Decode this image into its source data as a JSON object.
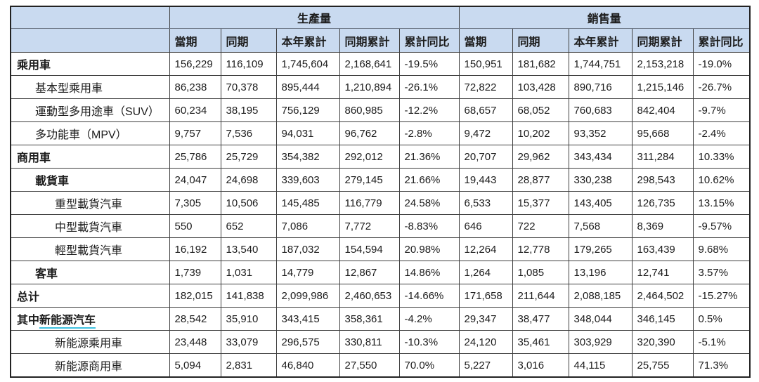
{
  "table": {
    "groups": [
      {
        "label": "生產量",
        "columns": [
          "當期",
          "同期",
          "本年累計",
          "同期累計",
          "累計同比"
        ]
      },
      {
        "label": "銷售量",
        "columns": [
          "當期",
          "同期",
          "本年累計",
          "同期累計",
          "累計同比"
        ]
      }
    ],
    "rows": [
      {
        "label": "乘用車",
        "indent": 0,
        "bold": true,
        "values": [
          "156,229",
          "116,109",
          "1,745,604",
          "2,168,641",
          "-19.5%",
          "150,951",
          "181,682",
          "1,744,751",
          "2,153,218",
          "-19.0%"
        ]
      },
      {
        "label": "基本型乘用車",
        "indent": 1,
        "bold": false,
        "values": [
          "86,238",
          "70,378",
          "895,444",
          "1,210,894",
          "-26.1%",
          "72,822",
          "103,428",
          "890,716",
          "1,215,146",
          "-26.7%"
        ]
      },
      {
        "label": "運動型多用途車（SUV）",
        "indent": 1,
        "bold": false,
        "values": [
          "60,234",
          "38,195",
          "756,129",
          "860,985",
          "-12.2%",
          "68,657",
          "68,052",
          "760,683",
          "842,404",
          "-9.7%"
        ]
      },
      {
        "label": "多功能車（MPV）",
        "indent": 1,
        "bold": false,
        "values": [
          "9,757",
          "7,536",
          "94,031",
          "96,762",
          "-2.8%",
          "9,472",
          "10,202",
          "93,352",
          "95,668",
          "-2.4%"
        ]
      },
      {
        "label": "商用車",
        "indent": 0,
        "bold": true,
        "values": [
          "25,786",
          "25,729",
          "354,382",
          "292,012",
          "21.36%",
          "20,707",
          "29,962",
          "343,434",
          "311,284",
          "10.33%"
        ]
      },
      {
        "label": "載貨車",
        "indent": 1,
        "bold": true,
        "values": [
          "24,047",
          "24,698",
          "339,603",
          "279,145",
          "21.66%",
          "19,443",
          "28,877",
          "330,238",
          "298,543",
          "10.62%"
        ]
      },
      {
        "label": "重型載貨汽車",
        "indent": 2,
        "bold": false,
        "values": [
          "7,305",
          "10,506",
          "145,485",
          "116,779",
          "24.58%",
          "6,533",
          "15,377",
          "143,405",
          "126,735",
          "13.15%"
        ]
      },
      {
        "label": "中型載貨汽車",
        "indent": 2,
        "bold": false,
        "values": [
          "550",
          "652",
          "7,086",
          "7,772",
          "-8.83%",
          "646",
          "722",
          "7,568",
          "8,369",
          "-9.57%"
        ]
      },
      {
        "label": "輕型載貨汽車",
        "indent": 2,
        "bold": false,
        "values": [
          "16,192",
          "13,540",
          "187,032",
          "154,594",
          "20.98%",
          "12,264",
          "12,778",
          "179,265",
          "163,439",
          "9.68%"
        ]
      },
      {
        "label": "客車",
        "indent": 1,
        "bold": true,
        "values": [
          "1,739",
          "1,031",
          "14,779",
          "12,867",
          "14.86%",
          "1,264",
          "1,085",
          "13,196",
          "12,741",
          "3.57%"
        ]
      },
      {
        "label": "总计",
        "indent": 0,
        "bold": true,
        "values": [
          "182,015",
          "141,838",
          "2,099,986",
          "2,460,653",
          "-14.66%",
          "171,658",
          "211,644",
          "2,088,185",
          "2,464,502",
          "-15.27%"
        ]
      },
      {
        "label": "其中",
        "underline_text": "新能源汽车",
        "indent": 0,
        "bold": true,
        "values": [
          "28,542",
          "35,910",
          "343,415",
          "358,361",
          "-4.2%",
          "29,347",
          "38,477",
          "348,044",
          "346,145",
          "0.5%"
        ]
      },
      {
        "label": "新能源乘用車",
        "indent": 2,
        "bold": false,
        "values": [
          "23,448",
          "33,079",
          "296,575",
          "330,811",
          "-10.3%",
          "24,120",
          "35,461",
          "303,929",
          "320,390",
          "-5.1%"
        ]
      },
      {
        "label": "新能源商用車",
        "indent": 2,
        "bold": false,
        "values": [
          "5,094",
          "2,831",
          "46,840",
          "27,550",
          "70.0%",
          "5,227",
          "3,016",
          "44,115",
          "25,755",
          "71.3%"
        ]
      }
    ],
    "colors": {
      "header_bg": "#c9daf0",
      "inner_border": "#3f3f3f",
      "outer_border": "#222222",
      "header_divider": "#6d7787",
      "underline_accent": "#3ec1e0"
    }
  }
}
